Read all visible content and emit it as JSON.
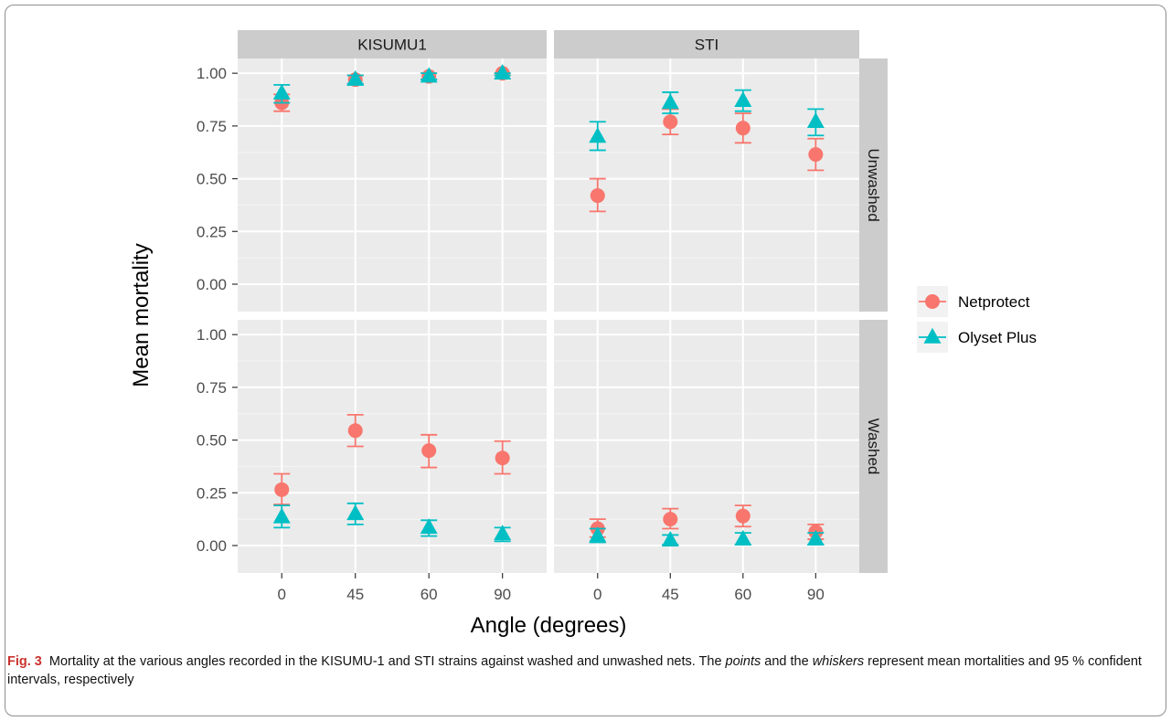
{
  "chart_data": {
    "type": "scatter",
    "ylabel": "Mean mortality",
    "xlabel": "Angle (degrees)",
    "facet_columns": [
      "KISUMU1",
      "STI"
    ],
    "facet_rows": [
      "Unwashed",
      "Washed"
    ],
    "x_categories": [
      "0",
      "45",
      "60",
      "90"
    ],
    "y_ticks": [
      "0.00",
      "0.25",
      "0.50",
      "0.75",
      "1.00"
    ],
    "ylim": [
      -0.13,
      1.07
    ],
    "legend_position": "right",
    "series": [
      {
        "name": "Netprotect",
        "color": "#F8766D",
        "marker": "circle",
        "panels": {
          "KISUMU1|Unwashed": [
            {
              "x": "0",
              "y": 0.86,
              "lo": 0.82,
              "hi": 0.9
            },
            {
              "x": "45",
              "y": 0.97,
              "lo": 0.95,
              "hi": 0.99
            },
            {
              "x": "60",
              "y": 0.985,
              "lo": 0.97,
              "hi": 1.0
            },
            {
              "x": "90",
              "y": 1.0,
              "lo": 0.99,
              "hi": 1.0
            }
          ],
          "STI|Unwashed": [
            {
              "x": "0",
              "y": 0.42,
              "lo": 0.345,
              "hi": 0.5
            },
            {
              "x": "45",
              "y": 0.77,
              "lo": 0.71,
              "hi": 0.83
            },
            {
              "x": "60",
              "y": 0.74,
              "lo": 0.67,
              "hi": 0.81
            },
            {
              "x": "90",
              "y": 0.615,
              "lo": 0.54,
              "hi": 0.69
            }
          ],
          "KISUMU1|Washed": [
            {
              "x": "0",
              "y": 0.265,
              "lo": 0.195,
              "hi": 0.34
            },
            {
              "x": "45",
              "y": 0.545,
              "lo": 0.47,
              "hi": 0.62
            },
            {
              "x": "60",
              "y": 0.45,
              "lo": 0.37,
              "hi": 0.525
            },
            {
              "x": "90",
              "y": 0.415,
              "lo": 0.34,
              "hi": 0.495
            }
          ],
          "STI|Washed": [
            {
              "x": "0",
              "y": 0.08,
              "lo": 0.04,
              "hi": 0.125
            },
            {
              "x": "45",
              "y": 0.125,
              "lo": 0.08,
              "hi": 0.175
            },
            {
              "x": "60",
              "y": 0.14,
              "lo": 0.09,
              "hi": 0.19
            },
            {
              "x": "90",
              "y": 0.065,
              "lo": 0.03,
              "hi": 0.1
            }
          ]
        }
      },
      {
        "name": "Olyset Plus",
        "color": "#00BFC4",
        "marker": "triangle",
        "panels": {
          "KISUMU1|Unwashed": [
            {
              "x": "0",
              "y": 0.905,
              "lo": 0.86,
              "hi": 0.945
            },
            {
              "x": "45",
              "y": 0.97,
              "lo": 0.95,
              "hi": 0.99
            },
            {
              "x": "60",
              "y": 0.985,
              "lo": 0.97,
              "hi": 1.0
            },
            {
              "x": "90",
              "y": 1.0,
              "lo": 0.99,
              "hi": 1.0
            }
          ],
          "STI|Unwashed": [
            {
              "x": "0",
              "y": 0.7,
              "lo": 0.635,
              "hi": 0.77
            },
            {
              "x": "45",
              "y": 0.86,
              "lo": 0.81,
              "hi": 0.91
            },
            {
              "x": "60",
              "y": 0.87,
              "lo": 0.82,
              "hi": 0.92
            },
            {
              "x": "90",
              "y": 0.77,
              "lo": 0.705,
              "hi": 0.83
            }
          ],
          "KISUMU1|Washed": [
            {
              "x": "0",
              "y": 0.135,
              "lo": 0.085,
              "hi": 0.19
            },
            {
              "x": "45",
              "y": 0.15,
              "lo": 0.1,
              "hi": 0.2
            },
            {
              "x": "60",
              "y": 0.085,
              "lo": 0.045,
              "hi": 0.12
            },
            {
              "x": "90",
              "y": 0.055,
              "lo": 0.02,
              "hi": 0.085
            }
          ],
          "STI|Washed": [
            {
              "x": "0",
              "y": 0.045,
              "lo": 0.015,
              "hi": 0.08
            },
            {
              "x": "45",
              "y": 0.025,
              "lo": 0.005,
              "hi": 0.05
            },
            {
              "x": "60",
              "y": 0.03,
              "lo": 0.005,
              "hi": 0.06
            },
            {
              "x": "90",
              "y": 0.03,
              "lo": 0.005,
              "hi": 0.06
            }
          ]
        }
      }
    ]
  },
  "caption": {
    "label": "Fig. 3",
    "text_1": "Mortality at the various angles recorded in the KISUMU-1 and STI strains against washed and unwashed nets. The ",
    "italic_1": "points",
    "text_2": " and the ",
    "italic_2": "whiskers",
    "text_3": " represent mean mortalities and 95 % confident intervals, respectively"
  },
  "colors": {
    "panel_bg": "#EBEBEB",
    "strip_bg": "#CCCCCC",
    "grid_major": "#FFFFFF",
    "grid_minor": "#F5F5F5",
    "fig_label": "#C9342E"
  }
}
